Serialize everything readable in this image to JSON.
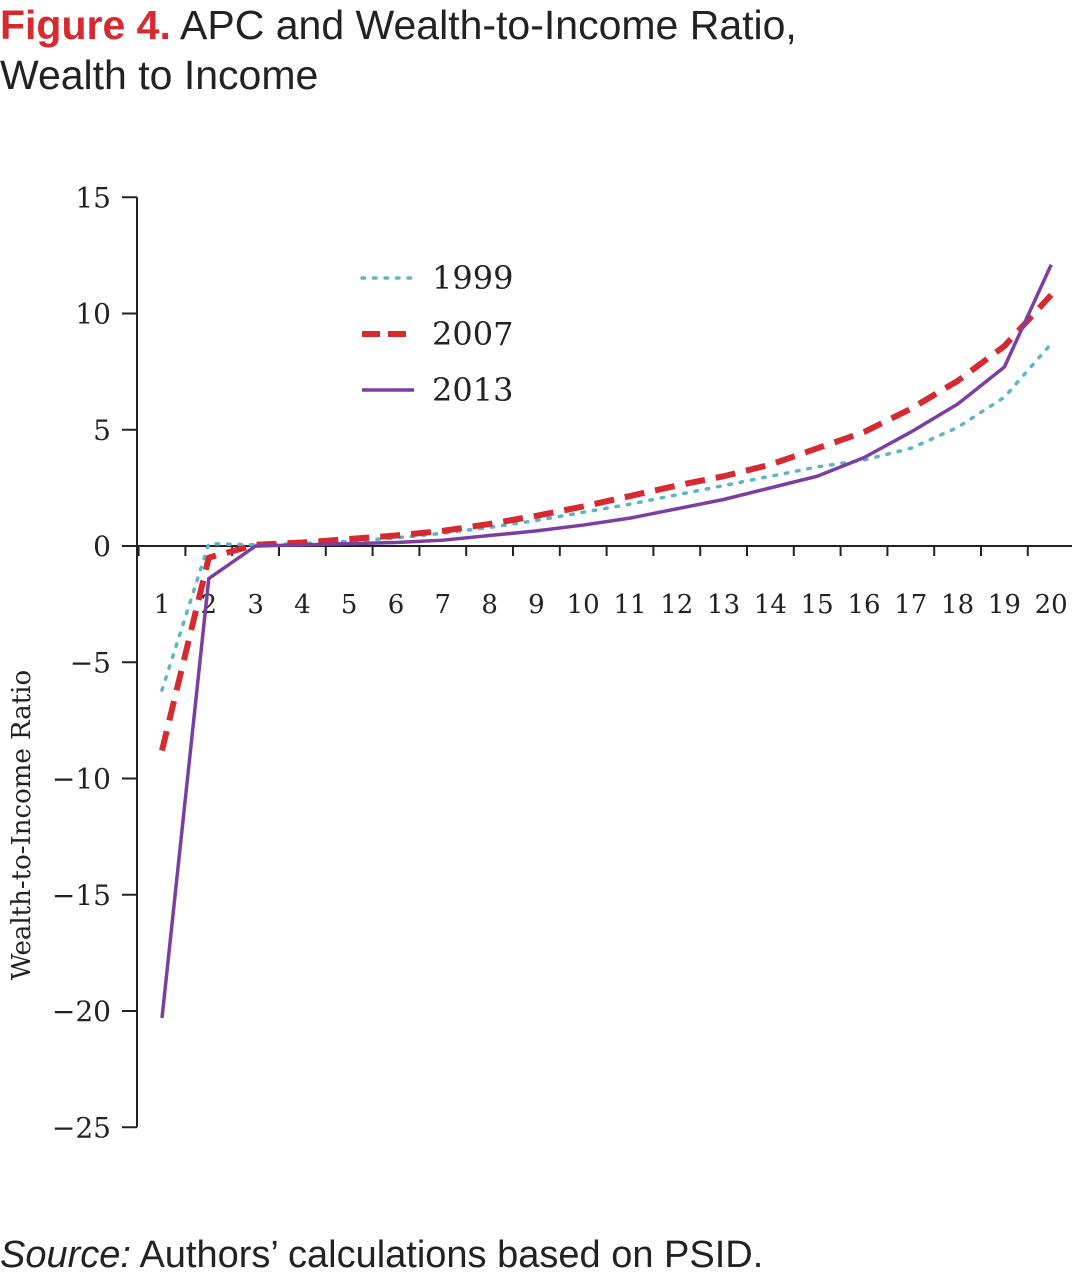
{
  "figure": {
    "number_label": "Figure 4.",
    "title_line1": "APC and Wealth-to-Income Ratio,",
    "title_line2": "Wealth to Income"
  },
  "source": {
    "label": "Source:",
    "text": "Authors’ calculations based on PSID."
  },
  "chart_data": {
    "type": "line",
    "title": "",
    "xlabel": "",
    "ylabel": "Wealth-to-Income Ratio",
    "x": [
      1,
      2,
      3,
      4,
      5,
      6,
      7,
      8,
      9,
      10,
      11,
      12,
      13,
      14,
      15,
      16,
      17,
      18,
      19,
      20
    ],
    "x_tick_labels": [
      "1",
      "2",
      "3",
      "4",
      "5",
      "6",
      "7",
      "8",
      "9",
      "10",
      "11",
      "12",
      "13",
      "14",
      "15",
      "16",
      "17",
      "18",
      "19",
      "20"
    ],
    "ylim": [
      -25,
      15
    ],
    "y_ticks": [
      15,
      10,
      5,
      0,
      -5,
      -10,
      -15,
      -20,
      -25
    ],
    "y_tick_labels": [
      "15",
      "10",
      "5",
      "0",
      "−5",
      "−10",
      "−15",
      "−20",
      "−25"
    ],
    "grid": false,
    "legend_position": "top-center",
    "series": [
      {
        "name": "1999",
        "style": "dotted",
        "color": "#5bb5c8",
        "values": [
          -6.2,
          0.1,
          0.05,
          0.1,
          0.2,
          0.35,
          0.55,
          0.8,
          1.1,
          1.45,
          1.8,
          2.2,
          2.6,
          3.0,
          3.4,
          3.7,
          4.2,
          5.1,
          6.4,
          8.7
        ]
      },
      {
        "name": "2007",
        "style": "dashed",
        "color": "#d42a30",
        "values": [
          -8.8,
          -0.5,
          0.05,
          0.15,
          0.3,
          0.45,
          0.65,
          0.95,
          1.3,
          1.7,
          2.15,
          2.6,
          3.0,
          3.5,
          4.2,
          4.9,
          5.9,
          7.1,
          8.6,
          10.8
        ]
      },
      {
        "name": "2013",
        "style": "solid",
        "color": "#7b3fa0",
        "values": [
          -20.3,
          -1.4,
          0.0,
          0.05,
          0.1,
          0.15,
          0.25,
          0.45,
          0.65,
          0.9,
          1.2,
          1.6,
          2.0,
          2.5,
          3.0,
          3.8,
          4.9,
          6.1,
          7.7,
          12.1
        ]
      }
    ]
  }
}
